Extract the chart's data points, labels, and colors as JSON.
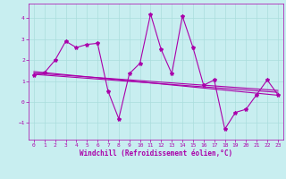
{
  "title": "",
  "xlabel": "Windchill (Refroidissement éolien,°C)",
  "ylabel": "",
  "xlim": [
    -0.5,
    23.5
  ],
  "ylim": [
    -1.8,
    4.7
  ],
  "yticks": [
    -1,
    0,
    1,
    2,
    3,
    4
  ],
  "xticks": [
    0,
    1,
    2,
    3,
    4,
    5,
    6,
    7,
    8,
    9,
    10,
    11,
    12,
    13,
    14,
    15,
    16,
    17,
    18,
    19,
    20,
    21,
    22,
    23
  ],
  "bg_color": "#c8eef0",
  "grid_color": "#aadddd",
  "line_color": "#aa00aa",
  "line1_x": [
    0,
    1,
    2,
    3,
    4,
    5,
    6,
    7,
    8,
    9,
    10,
    11,
    12,
    13,
    14,
    15,
    16,
    17,
    18,
    19,
    20,
    21,
    22,
    23
  ],
  "line1_y": [
    1.3,
    1.4,
    2.0,
    2.9,
    2.6,
    2.75,
    2.8,
    0.5,
    -0.8,
    1.35,
    1.85,
    4.2,
    2.5,
    1.35,
    4.1,
    2.6,
    0.8,
    1.05,
    -1.3,
    -0.5,
    -0.35,
    0.35,
    1.05,
    0.35
  ],
  "line2_x": [
    0,
    23
  ],
  "line2_y": [
    1.45,
    0.32
  ],
  "line3_x": [
    0,
    23
  ],
  "line3_y": [
    1.38,
    0.55
  ],
  "line4_x": [
    0,
    23
  ],
  "line4_y": [
    1.32,
    0.46
  ],
  "marker": "*",
  "markersize": 3,
  "linewidth": 0.8
}
